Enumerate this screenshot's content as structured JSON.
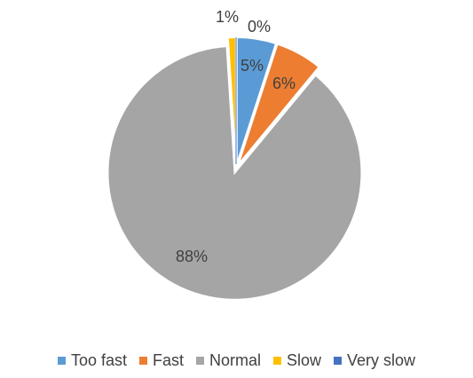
{
  "chart_data": {
    "type": "pie",
    "categories": [
      "Too fast",
      "Fast",
      "Normal",
      "Slow",
      "Very slow"
    ],
    "values": [
      5,
      6,
      88,
      1,
      0
    ],
    "labels": [
      "5%",
      "6%",
      "88%",
      "1%",
      "0%"
    ],
    "colors": [
      "#5B9BD5",
      "#ED7D31",
      "#A5A5A5",
      "#FFC000",
      "#4472C4"
    ],
    "slice_gaps": true,
    "legend_position": "bottom"
  }
}
